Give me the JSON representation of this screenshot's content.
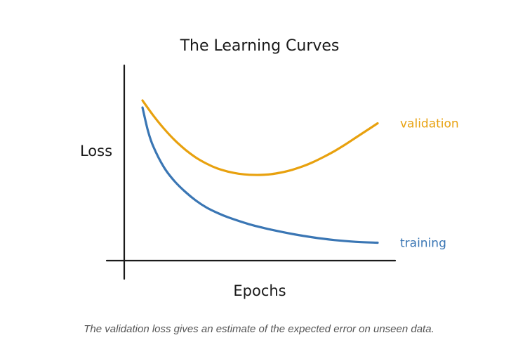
{
  "caption": "The validation loss gives an estimate of the expected error on unseen data.",
  "colors": {
    "axis": "#1a1a1a",
    "validation": "#E8A10E",
    "training": "#3A76B4"
  },
  "chart_data": {
    "type": "line",
    "title": "The Learning Curves",
    "xlabel": "Epochs",
    "ylabel": "Loss",
    "xlim": [
      0,
      12
    ],
    "ylim": [
      0,
      10
    ],
    "grid": false,
    "legend": "inline labels at right end of lines",
    "series": [
      {
        "name": "validation",
        "x": [
          0,
          0.5,
          1,
          1.5,
          2,
          2.5,
          3,
          3.5,
          4,
          4.5,
          5,
          5.5,
          6,
          6.5,
          7,
          7.5,
          8,
          8.5,
          9,
          9.5,
          10,
          10.5,
          11
        ],
        "values": [
          9.0,
          8.15,
          7.4,
          6.75,
          6.2,
          5.75,
          5.4,
          5.13,
          4.95,
          4.83,
          4.77,
          4.76,
          4.8,
          4.9,
          5.05,
          5.25,
          5.5,
          5.8,
          6.13,
          6.5,
          6.9,
          7.3,
          7.7
        ]
      },
      {
        "name": "training",
        "x": [
          0,
          0.25,
          0.5,
          1,
          1.5,
          2,
          2.5,
          3,
          3.5,
          4,
          5,
          6,
          7,
          8,
          9,
          10,
          11
        ],
        "values": [
          8.6,
          7.3,
          6.4,
          5.2,
          4.4,
          3.8,
          3.3,
          2.9,
          2.6,
          2.35,
          1.95,
          1.65,
          1.4,
          1.2,
          1.05,
          0.95,
          0.9
        ]
      }
    ]
  }
}
